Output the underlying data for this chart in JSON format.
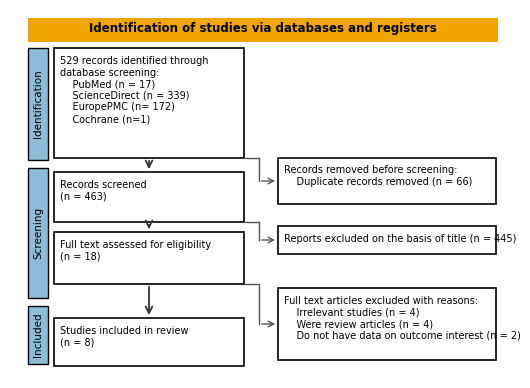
{
  "title": "Identification of studies via databases and registers",
  "title_bg": "#F0A500",
  "title_color": "black",
  "box_bg": "white",
  "box_edge": "black",
  "side_label_bg": "#8BBCDA",
  "side_label_color": "black",
  "fig_bg": "white",
  "font_size_title": 8.5,
  "font_size_box": 7.0,
  "font_size_side": 7.5,
  "lb0_text": "529 records identified through\ndatabase screening:\n    PubMed (n = 17)\n    ScienceDirect (n = 339)\n    EuropePMC (n= 172)\n    Cochrane (n=1)",
  "lb1_text": "Records screened\n(n = 463)",
  "lb2_text": "Full text assessed for eligibility\n(n = 18)",
  "lb3_text": "Studies included in review\n(n = 8)",
  "rb0_text": "Records removed before screening:\n    Duplicate records removed (n = 66)",
  "rb1_text": "Reports excluded on the basis of title (n = 445)",
  "rb2_text": "Full text articles excluded with reasons:\n    Irrelevant studies (n = 4)\n    Were review articles (n = 4)\n    Do not have data on outcome interest (n = 2)",
  "sl0_text": "Identification",
  "sl1_text": "Screening",
  "sl2_text": "Included"
}
